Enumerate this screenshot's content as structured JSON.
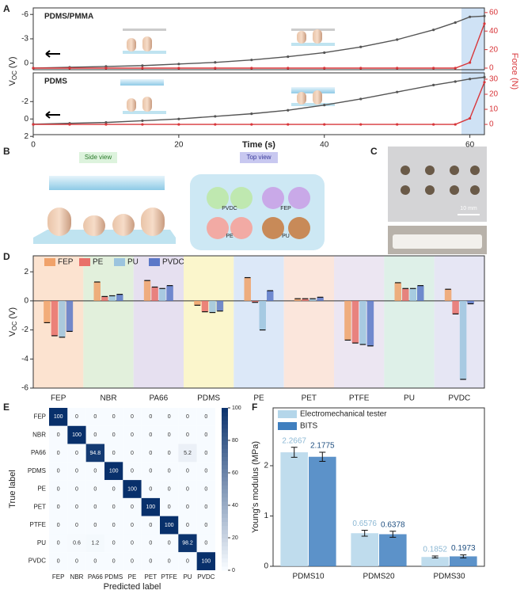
{
  "panel_labels": [
    "A",
    "B",
    "C",
    "D",
    "E",
    "F"
  ],
  "panel_b": {
    "side_view": "Side view",
    "top_view": "Top view",
    "materials": [
      "PVDC",
      "FEP",
      "PE",
      "PU"
    ]
  },
  "panel_c": {
    "scale_bar": "10 mm"
  },
  "chart_data": [
    {
      "type": "line",
      "title": "PDMS/PMMA",
      "y_label": [
        "V",
        "OC",
        "(V)"
      ],
      "y2_label": "Force (N)",
      "x": [
        0,
        5,
        10,
        15,
        20,
        25,
        30,
        35,
        40,
        45,
        50,
        55,
        58,
        60,
        62
      ],
      "xlim": [
        0,
        62
      ],
      "ylim": [
        0.8,
        -6.8
      ],
      "yticks": [
        -6,
        -3,
        0
      ],
      "y2lim": [
        -1.7,
        65
      ],
      "y2ticks": [
        0,
        20,
        40,
        60
      ],
      "series": [
        {
          "color": "#555555",
          "values": [
            0.6,
            0.5,
            0.4,
            0.3,
            0.1,
            -0.1,
            -0.4,
            -0.8,
            -1.3,
            -2,
            -2.9,
            -4.1,
            -5,
            -5.7,
            -5.8
          ]
        },
        {
          "color": "#d8363a",
          "axis": "y2",
          "values": [
            0,
            0,
            0,
            0,
            0,
            0,
            0,
            0,
            0,
            0,
            0,
            0,
            0,
            6,
            48
          ]
        }
      ]
    },
    {
      "type": "line",
      "title": "PDMS",
      "x_label": "Time (s)",
      "x": [
        0,
        5,
        10,
        15,
        20,
        25,
        30,
        35,
        40,
        45,
        50,
        55,
        58,
        60,
        62
      ],
      "xlim": [
        0,
        62
      ],
      "xticks": [
        0,
        20,
        40,
        60
      ],
      "ylim": [
        1.8,
        -5.3
      ],
      "yticks": [
        -2,
        0,
        2
      ],
      "y2lim": [
        -6.8,
        34.2
      ],
      "y2ticks": [
        0,
        10,
        20,
        30
      ],
      "series": [
        {
          "color": "#555555",
          "values": [
            0.6,
            0.5,
            0.4,
            0.2,
            0,
            -0.3,
            -0.6,
            -1,
            -1.6,
            -2.3,
            -3.1,
            -3.9,
            -4.3,
            -4.6,
            -4.8
          ]
        },
        {
          "color": "#d8363a",
          "axis": "y2",
          "values": [
            0,
            0,
            0,
            0,
            0,
            0,
            0,
            0,
            0,
            0,
            0,
            0,
            0,
            4,
            28
          ]
        }
      ]
    },
    {
      "type": "bar",
      "y_label": [
        "V",
        "OC",
        "(V)"
      ],
      "categories": [
        "FEP",
        "NBR",
        "PA66",
        "PDMS",
        "PE",
        "PET",
        "PTFE",
        "PU",
        "PVDC"
      ],
      "category_colors": [
        "#fce3d0",
        "#e2f0dc",
        "#e6e0f0",
        "#fbf6cc",
        "#dce8f8",
        "#fbe6dc",
        "#ece6f2",
        "#def0e8",
        "#e6e6f4"
      ],
      "ylim": [
        -6,
        3.1
      ],
      "yticks": [
        -6,
        -4,
        -2,
        0,
        2
      ],
      "series": [
        {
          "name": "FEP",
          "color": "#f0a26a",
          "values": [
            -1.5,
            1.3,
            1.4,
            -0.3,
            1.6,
            0.15,
            -2.7,
            1.25,
            0.8
          ]
        },
        {
          "name": "PE",
          "color": "#e8706a",
          "values": [
            -2.4,
            0.3,
            0.95,
            -0.75,
            -0.1,
            0.15,
            -2.9,
            0.85,
            -0.9
          ]
        },
        {
          "name": "PU",
          "color": "#9cc4de",
          "values": [
            -2.5,
            0.35,
            0.85,
            -0.8,
            -2,
            0.15,
            -3,
            0.85,
            -5.4
          ]
        },
        {
          "name": "PVDC",
          "color": "#5b78c8",
          "values": [
            -2.1,
            0.45,
            1.05,
            -0.7,
            0.7,
            0.25,
            -3.1,
            1.05,
            -0.2
          ]
        }
      ]
    },
    {
      "type": "heatmap",
      "x_label": "Predicted label",
      "y_label": "True label",
      "x_categories": [
        "FEP",
        "NBR",
        "PA66",
        "PDMS",
        "PE",
        "PET",
        "PTFE",
        "PU",
        "PVDC"
      ],
      "y_categories": [
        "FEP",
        "NBR",
        "PA66",
        "PDMS",
        "PE",
        "PET",
        "PTFE",
        "PU",
        "PVDC"
      ],
      "vlim": [
        0,
        100
      ],
      "colorbar_ticks": [
        0,
        20,
        40,
        60,
        80,
        100
      ],
      "values": [
        [
          100,
          0,
          0,
          0,
          0,
          0,
          0,
          0,
          0
        ],
        [
          0,
          100,
          0,
          0,
          0,
          0,
          0,
          0,
          0
        ],
        [
          0,
          0,
          94.8,
          0,
          0,
          0,
          0,
          5.2,
          0
        ],
        [
          0,
          0,
          0,
          100,
          0,
          0,
          0,
          0,
          0
        ],
        [
          0,
          0,
          0,
          0,
          100,
          0,
          0,
          0,
          0
        ],
        [
          0,
          0,
          0,
          0,
          0,
          100,
          0,
          0,
          0
        ],
        [
          0,
          0,
          0,
          0,
          0,
          0,
          100,
          0,
          0
        ],
        [
          0,
          0.6,
          1.2,
          0,
          0,
          0,
          0,
          98.2,
          0
        ],
        [
          0,
          0,
          0,
          0,
          0,
          0,
          0,
          0,
          100
        ]
      ]
    },
    {
      "type": "bar",
      "y_label": "Young's modulus (MPa)",
      "categories": [
        "PDMS10",
        "PDMS20",
        "PDMS30"
      ],
      "ylim": [
        0,
        3.15
      ],
      "yticks": [
        0,
        1,
        2
      ],
      "series": [
        {
          "name": "Electromechanical tester",
          "color": "#b4d6ea",
          "values": [
            2.2667,
            0.6576,
            0.1852
          ],
          "errors": [
            0.1,
            0.06,
            0.02
          ]
        },
        {
          "name": "BITS",
          "color": "#3f7fbf",
          "values": [
            2.1775,
            0.6378,
            0.1973
          ],
          "errors": [
            0.09,
            0.06,
            0.03
          ]
        }
      ]
    }
  ]
}
